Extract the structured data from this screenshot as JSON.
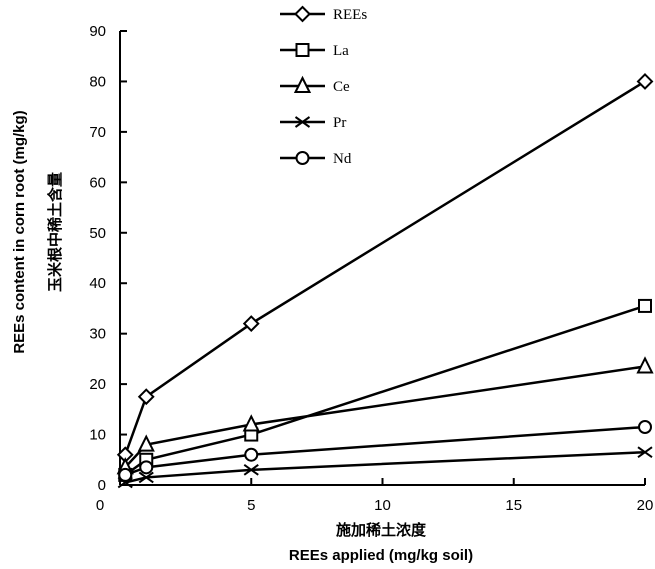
{
  "chart_data": {
    "type": "line",
    "xlabel": "REEs applied (mg/kg soil)",
    "xlabel_cn": "施加稀土浓度",
    "ylabel": "REEs content in corn root (mg/kg)",
    "ylabel_cn": "玉米根中稀土含量",
    "xlim": [
      0,
      20
    ],
    "ylim": [
      0,
      90
    ],
    "xticks": [
      0,
      5,
      10,
      15,
      20
    ],
    "yticks": [
      0,
      10,
      20,
      30,
      40,
      50,
      60,
      70,
      80,
      90
    ],
    "grid": false,
    "legend_position": "top-center",
    "series": [
      {
        "name": "REEs",
        "marker": "diamond",
        "x": [
          0.2,
          1,
          5,
          20
        ],
        "y": [
          6,
          17.5,
          32,
          80
        ]
      },
      {
        "name": "La",
        "marker": "square",
        "x": [
          0.2,
          1,
          5,
          20
        ],
        "y": [
          2,
          5,
          10,
          35.5
        ]
      },
      {
        "name": "Ce",
        "marker": "triangle",
        "x": [
          0.2,
          1,
          5,
          20
        ],
        "y": [
          3.5,
          8,
          12,
          23.5
        ]
      },
      {
        "name": "Pr",
        "marker": "x",
        "x": [
          0.2,
          1,
          5,
          20
        ],
        "y": [
          0.5,
          1.5,
          3,
          6.5
        ]
      },
      {
        "name": "Nd",
        "marker": "circle",
        "x": [
          0.2,
          1,
          5,
          20
        ],
        "y": [
          2,
          3.5,
          6,
          11.5
        ]
      }
    ]
  }
}
